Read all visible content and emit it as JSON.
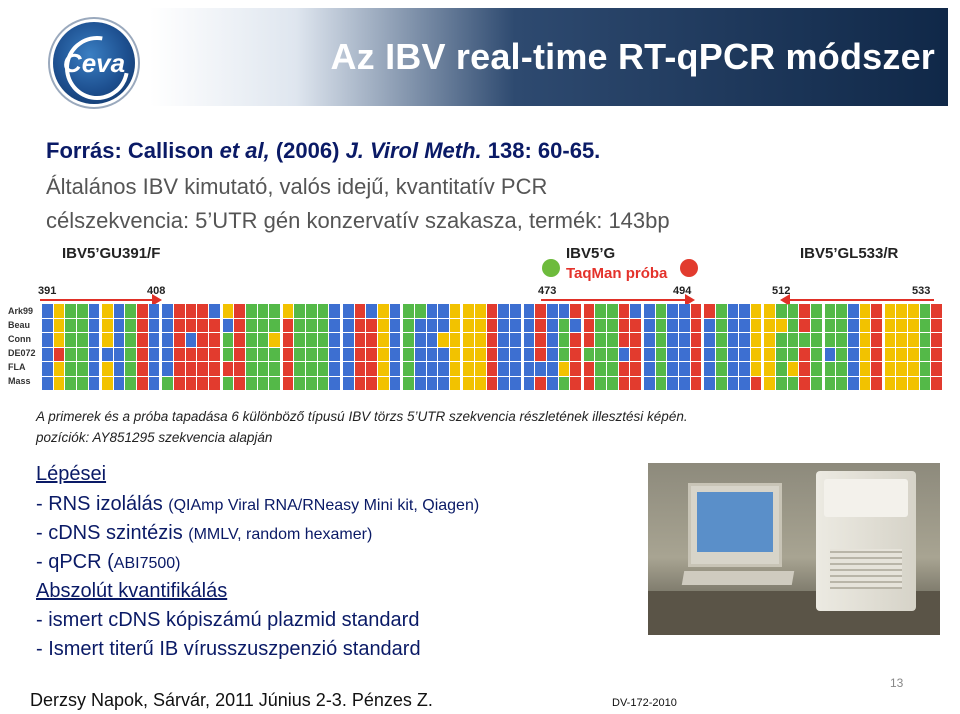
{
  "header": {
    "title": "Az IBV real-time RT-qPCR módszer",
    "logo_text": "Ceva"
  },
  "source": {
    "prefix": "Forrás: Callison ",
    "etal": "et al,",
    "year": " (2006) ",
    "journal": "J. Virol Meth.",
    "ref": " 138: 60-65."
  },
  "intro": [
    "Általános IBV kimutató, valós idejű, kvantitatív PCR",
    "célszekvencia: 5’UTR gén konzervatív szakasza, termék: 143bp"
  ],
  "figure": {
    "primer_forward": "IBV5’GU391/F",
    "probe_name": "IBV5’G",
    "probe_label": "TaqMan próba",
    "primer_reverse": "IBV5’GL533/R",
    "positions": [
      "391",
      "408",
      "473",
      "494",
      "512",
      "533"
    ],
    "strains": [
      "Ark99",
      "Beau",
      "Conn",
      "DE072",
      "FLA",
      "Mass"
    ],
    "nucleotide_colors": {
      "a": "#54b948",
      "c": "#3d6fd1",
      "g": "#f2c200",
      "t": "#e23b2e"
    },
    "probe_dot_colors": {
      "left": "#6dbb3c",
      "right": "#e23b2e"
    }
  },
  "caption": [
    "A primerek és a próba tapadása 6 különböző típusú IBV törzs 5’UTR szekvencia részletének illesztési képén.",
    "pozíciók: AY851295 szekvencia alapján"
  ],
  "steps": {
    "title": "Lépései",
    "items": [
      {
        "main": "- RNS izolálás ",
        "detail": "(QIAmp Viral RNA/RNeasy Mini kit, Qiagen)"
      },
      {
        "main": "- cDNS szintézis ",
        "detail": "(MMLV, random hexamer)"
      },
      {
        "main": "- qPCR (",
        "detail": "ABI7500)"
      }
    ],
    "quant_title": "Abszolút kvantifikálás",
    "quant_items": [
      "- ismert cDNS kópiszámú plazmid standard",
      "- Ismert titerű IB vírusszuszpenzió standard"
    ]
  },
  "footer": {
    "event": "Derzsy Napok, Sárvár, 2011 Június 2-3. Pénzes Z.",
    "doc_code": "DV-172-2010",
    "page_number": "13"
  }
}
